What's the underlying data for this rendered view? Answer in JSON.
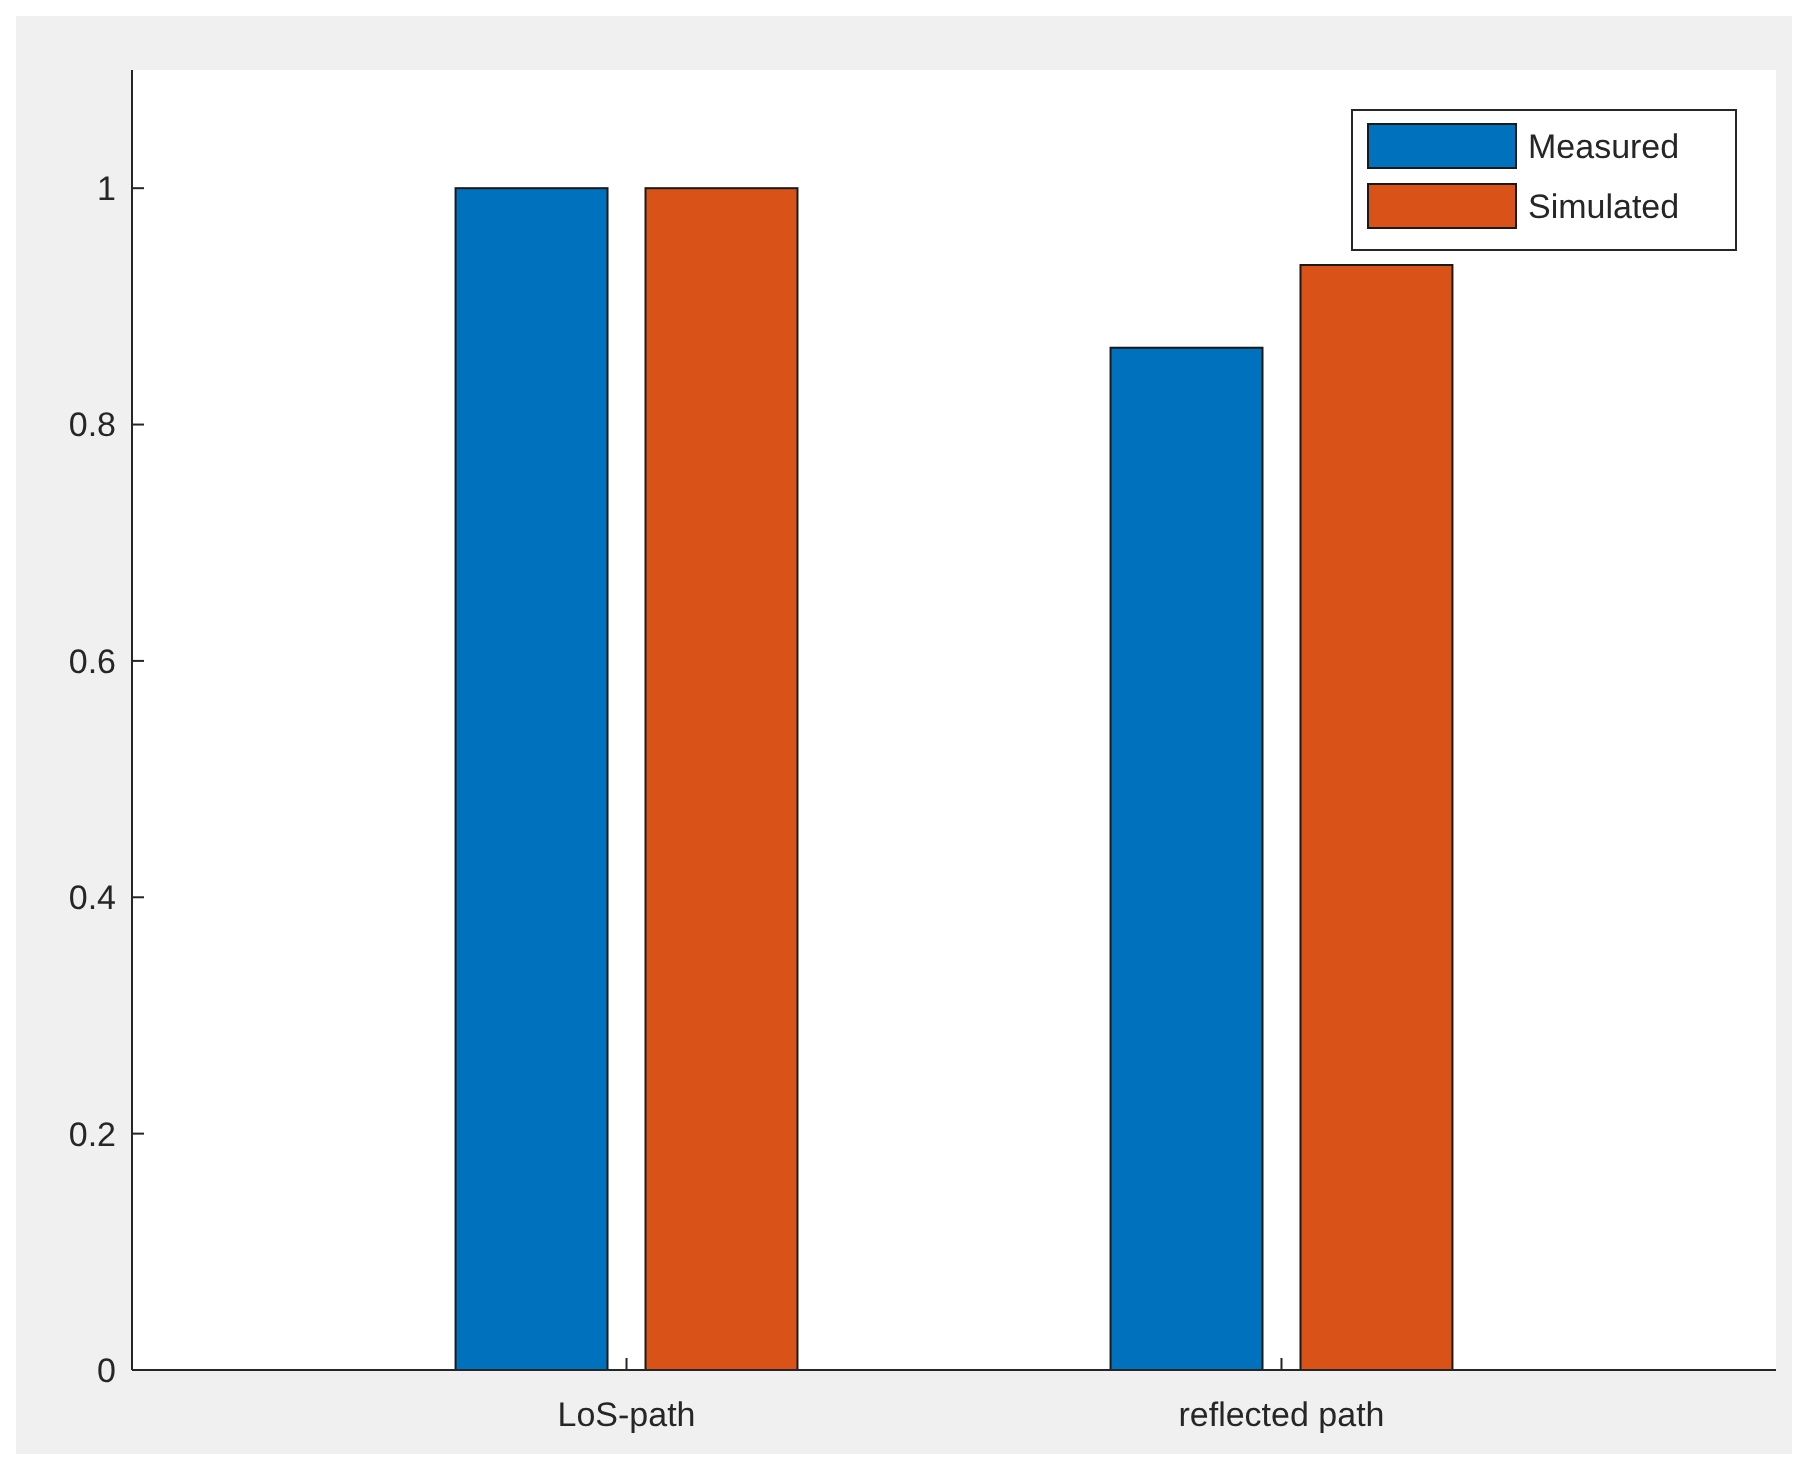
{
  "chart_data": {
    "type": "bar",
    "categories": [
      "LoS-path",
      "reflected path"
    ],
    "series": [
      {
        "name": "Measured",
        "color": "#0072bd",
        "values": [
          1,
          0.865
        ]
      },
      {
        "name": "Simulated",
        "color": "#d95319",
        "values": [
          1,
          0.935
        ]
      }
    ],
    "ylim": [
      0,
      1.1
    ],
    "yticks": [
      0,
      0.2,
      0.4,
      0.6,
      0.8,
      1
    ],
    "grid": false,
    "legend": "top right"
  }
}
